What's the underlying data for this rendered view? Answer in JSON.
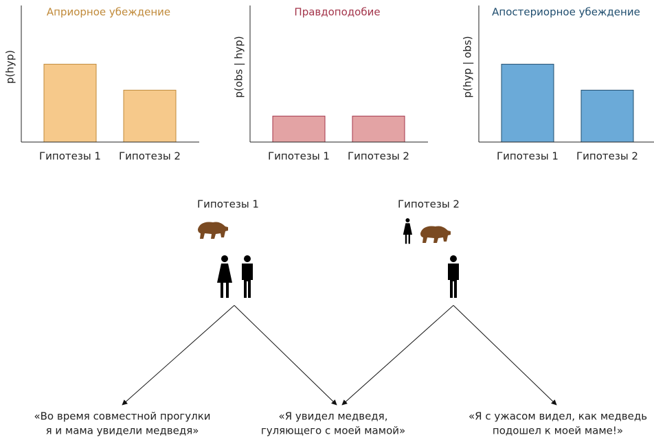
{
  "chart_data": [
    {
      "type": "bar",
      "title": "Априорное убеждение",
      "y_label": "p(hyp)",
      "categories": [
        "Гипотезы 1",
        "Гипотезы 2"
      ],
      "values": [
        0.57,
        0.38
      ],
      "color": "#f6c98b",
      "edgecolor": "#c08a3a",
      "title_color": "#c08a3a",
      "ylim": [
        0,
        1
      ]
    },
    {
      "type": "bar",
      "title": "Правдоподобие",
      "y_label": "p(obs | hyp)",
      "categories": [
        "Гипотезы 1",
        "Гипотезы 2"
      ],
      "values": [
        0.19,
        0.19
      ],
      "color": "#e3a3a4",
      "edgecolor": "#a3344a",
      "title_color": "#a3344a",
      "ylim": [
        0,
        1
      ]
    },
    {
      "type": "bar",
      "title": "Апостериорное убеждение",
      "y_label": "p(hyp | obs)",
      "categories": [
        "Гипотезы 1",
        "Гипотезы 2"
      ],
      "values": [
        0.57,
        0.38
      ],
      "color": "#6baad8",
      "edgecolor": "#1f4d6e",
      "title_color": "#1f4d6e",
      "ylim": [
        0,
        1
      ]
    }
  ],
  "diagram": {
    "hypotheses": [
      "Гипотезы 1",
      "Гипотезы 2"
    ],
    "quotes": [
      [
        "«Во время совместной прогулки",
        "я и мама увидели медведя»"
      ],
      [
        "«Я увидел медведя,",
        "гуляющего с моей мамой»"
      ],
      [
        "«Я с ужасом видел, как медведь",
        "подошел к моей маме!»"
      ]
    ]
  }
}
